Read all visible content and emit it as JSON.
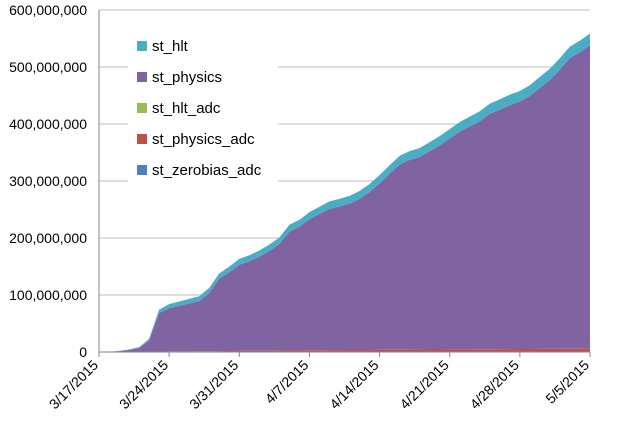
{
  "chart_data": {
    "type": "area",
    "stacked": true,
    "title": "",
    "xlabel": "",
    "ylabel": "",
    "grid": true,
    "legend_position": "top-left",
    "x_tick_labels": [
      "3/17/2015",
      "3/24/2015",
      "3/31/2015",
      "4/7/2015",
      "4/14/2015",
      "4/21/2015",
      "4/28/2015",
      "5/5/2015"
    ],
    "y_tick_labels": [
      "0",
      "100,000,000",
      "200,000,000",
      "300,000,000",
      "400,000,000",
      "500,000,000",
      "600,000,000"
    ],
    "ylim": [
      0,
      600000000
    ],
    "x": [
      "3/17/2015",
      "3/18/2015",
      "3/19/2015",
      "3/20/2015",
      "3/21/2015",
      "3/22/2015",
      "3/23/2015",
      "3/24/2015",
      "3/25/2015",
      "3/26/2015",
      "3/27/2015",
      "3/28/2015",
      "3/29/2015",
      "3/30/2015",
      "3/31/2015",
      "4/1/2015",
      "4/2/2015",
      "4/3/2015",
      "4/4/2015",
      "4/5/2015",
      "4/6/2015",
      "4/7/2015",
      "4/8/2015",
      "4/9/2015",
      "4/10/2015",
      "4/11/2015",
      "4/12/2015",
      "4/13/2015",
      "4/14/2015",
      "4/15/2015",
      "4/16/2015",
      "4/17/2015",
      "4/18/2015",
      "4/19/2015",
      "4/20/2015",
      "4/21/2015",
      "4/22/2015",
      "4/23/2015",
      "4/24/2015",
      "4/25/2015",
      "4/26/2015",
      "4/27/2015",
      "4/28/2015",
      "4/29/2015",
      "4/30/2015",
      "5/1/2015",
      "5/2/2015",
      "5/3/2015",
      "5/4/2015",
      "5/5/2015"
    ],
    "series": [
      {
        "name": "st_zerobias_adc",
        "color": "#4F81BD",
        "values": [
          0,
          0,
          0,
          0,
          0,
          0,
          0,
          0,
          0,
          0,
          0,
          0,
          0,
          0,
          0,
          0,
          0,
          0,
          0,
          0,
          0,
          0,
          0,
          0,
          0,
          0,
          0,
          0,
          0,
          0,
          0,
          0,
          0,
          0,
          0,
          0,
          0,
          0,
          0,
          0,
          0,
          0,
          0,
          0,
          0,
          0,
          0,
          0,
          0,
          0
        ]
      },
      {
        "name": "st_physics_adc",
        "color": "#C0504D",
        "values": [
          0,
          0,
          0,
          0,
          50000,
          200000,
          400000,
          1000000,
          1100000,
          1200000,
          1300000,
          1400000,
          1500000,
          1700000,
          2000000,
          2100000,
          2200000,
          2300000,
          2400000,
          2500000,
          2700000,
          3000000,
          3100000,
          3200000,
          3300000,
          3400000,
          3500000,
          3600000,
          3800000,
          3900000,
          4000000,
          4100000,
          4200000,
          4300000,
          4400000,
          4500000,
          4600000,
          4700000,
          4800000,
          4900000,
          5000000,
          5100000,
          5200000,
          5300000,
          5400000,
          5500000,
          5600000,
          5700000,
          5800000,
          6000000
        ]
      },
      {
        "name": "st_hlt_adc",
        "color": "#9BBB59",
        "values": [
          0,
          0,
          0,
          0,
          0,
          0,
          0,
          0,
          0,
          0,
          0,
          0,
          0,
          0,
          0,
          0,
          0,
          0,
          0,
          0,
          0,
          0,
          0,
          0,
          0,
          0,
          0,
          0,
          0,
          0,
          0,
          0,
          0,
          0,
          0,
          0,
          0,
          0,
          0,
          0,
          0,
          0,
          0,
          0,
          0,
          0,
          0,
          0,
          0,
          0
        ]
      },
      {
        "name": "st_physics",
        "color": "#8064A2",
        "values": [
          0,
          300000,
          1500000,
          3500000,
          7000000,
          20000000,
          68000000,
          76000000,
          80000000,
          84000000,
          88000000,
          102000000,
          127000000,
          138000000,
          151000000,
          157000000,
          165000000,
          175000000,
          187000000,
          209000000,
          217000000,
          230000000,
          239000000,
          248000000,
          252000000,
          257000000,
          265000000,
          277000000,
          292000000,
          309000000,
          325000000,
          333000000,
          338000000,
          348000000,
          358000000,
          370000000,
          382000000,
          391000000,
          400000000,
          413000000,
          420000000,
          428000000,
          434000000,
          444000000,
          458000000,
          472000000,
          490000000,
          510000000,
          520000000,
          532000000
        ]
      },
      {
        "name": "st_hlt",
        "color": "#4BACC6",
        "values": [
          0,
          100000,
          500000,
          1000000,
          1500000,
          3000000,
          6000000,
          7000000,
          7500000,
          8000000,
          8500000,
          9000000,
          9500000,
          10000000,
          10300000,
          10600000,
          10900000,
          11200000,
          11500000,
          11800000,
          12100000,
          12400000,
          12700000,
          13000000,
          13300000,
          13600000,
          13900000,
          14200000,
          14500000,
          14800000,
          15100000,
          15400000,
          15700000,
          16000000,
          16300000,
          16600000,
          16900000,
          17200000,
          17500000,
          17800000,
          18100000,
          18400000,
          18700000,
          19000000,
          19300000,
          19600000,
          19900000,
          20200000,
          20500000,
          20800000
        ]
      }
    ]
  },
  "legend": {
    "items": [
      {
        "label": "st_hlt",
        "color": "#4BACC6"
      },
      {
        "label": "st_physics",
        "color": "#8064A2"
      },
      {
        "label": "st_hlt_adc",
        "color": "#9BBB59"
      },
      {
        "label": "st_physics_adc",
        "color": "#C0504D"
      },
      {
        "label": "st_zerobias_adc",
        "color": "#4F81BD"
      }
    ]
  }
}
